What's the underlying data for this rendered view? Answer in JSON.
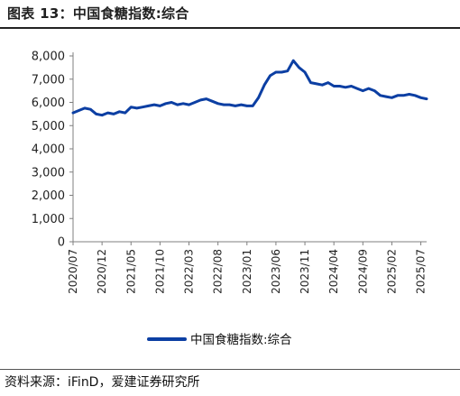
{
  "title": "图表 13：中国食糖指数:综合",
  "source": "资料来源：iFinD，爱建证券研究所",
  "colors": {
    "line": "#0c3fa3",
    "axis": "#7f7f7f",
    "rule": "#222222"
  },
  "chart_data": {
    "type": "line",
    "title": "图表 13：中国食糖指数:综合",
    "xlabel": "",
    "ylabel": "",
    "ylim": [
      0,
      8000
    ],
    "yticks": [
      0,
      1000,
      2000,
      3000,
      4000,
      5000,
      6000,
      7000,
      8000
    ],
    "ytick_labels": [
      "0",
      "1,000",
      "2,000",
      "3,000",
      "4,000",
      "5,000",
      "6,000",
      "7,000",
      "8,000"
    ],
    "xlim": [
      "2020-07",
      "2025-08"
    ],
    "xtick_labels": [
      "2020/07",
      "2020/12",
      "2021/05",
      "2021/10",
      "2022/03",
      "2022/08",
      "2023/01",
      "2023/06",
      "2023/11",
      "2024/04",
      "2024/09",
      "2025/02",
      "2025/07"
    ],
    "legend": "bottom-center",
    "grid": false,
    "series": [
      {
        "name": "中国食糖指数:综合",
        "x": [
          "2020-07",
          "2020-08",
          "2020-09",
          "2020-10",
          "2020-11",
          "2020-12",
          "2021-01",
          "2021-02",
          "2021-03",
          "2021-04",
          "2021-05",
          "2021-06",
          "2021-07",
          "2021-08",
          "2021-09",
          "2021-10",
          "2021-11",
          "2021-12",
          "2022-01",
          "2022-02",
          "2022-03",
          "2022-04",
          "2022-05",
          "2022-06",
          "2022-07",
          "2022-08",
          "2022-09",
          "2022-10",
          "2022-11",
          "2022-12",
          "2023-01",
          "2023-02",
          "2023-03",
          "2023-04",
          "2023-05",
          "2023-06",
          "2023-07",
          "2023-08",
          "2023-09",
          "2023-10",
          "2023-11",
          "2023-12",
          "2024-01",
          "2024-02",
          "2024-03",
          "2024-04",
          "2024-05",
          "2024-06",
          "2024-07",
          "2024-08",
          "2024-09",
          "2024-10",
          "2024-11",
          "2024-12",
          "2025-01",
          "2025-02",
          "2025-03",
          "2025-04",
          "2025-05",
          "2025-06",
          "2025-07",
          "2025-08"
        ],
        "values": [
          5550,
          5650,
          5750,
          5700,
          5500,
          5450,
          5550,
          5500,
          5600,
          5550,
          5800,
          5750,
          5800,
          5850,
          5900,
          5850,
          5950,
          6000,
          5900,
          5950,
          5900,
          6000,
          6100,
          6150,
          6050,
          5950,
          5900,
          5900,
          5850,
          5900,
          5850,
          5850,
          6200,
          6750,
          7150,
          7300,
          7300,
          7350,
          7800,
          7500,
          7300,
          6850,
          6800,
          6750,
          6850,
          6700,
          6700,
          6650,
          6700,
          6600,
          6500,
          6600,
          6500,
          6300,
          6250,
          6200,
          6300,
          6300,
          6350,
          6300,
          6200,
          6150
        ]
      }
    ]
  }
}
